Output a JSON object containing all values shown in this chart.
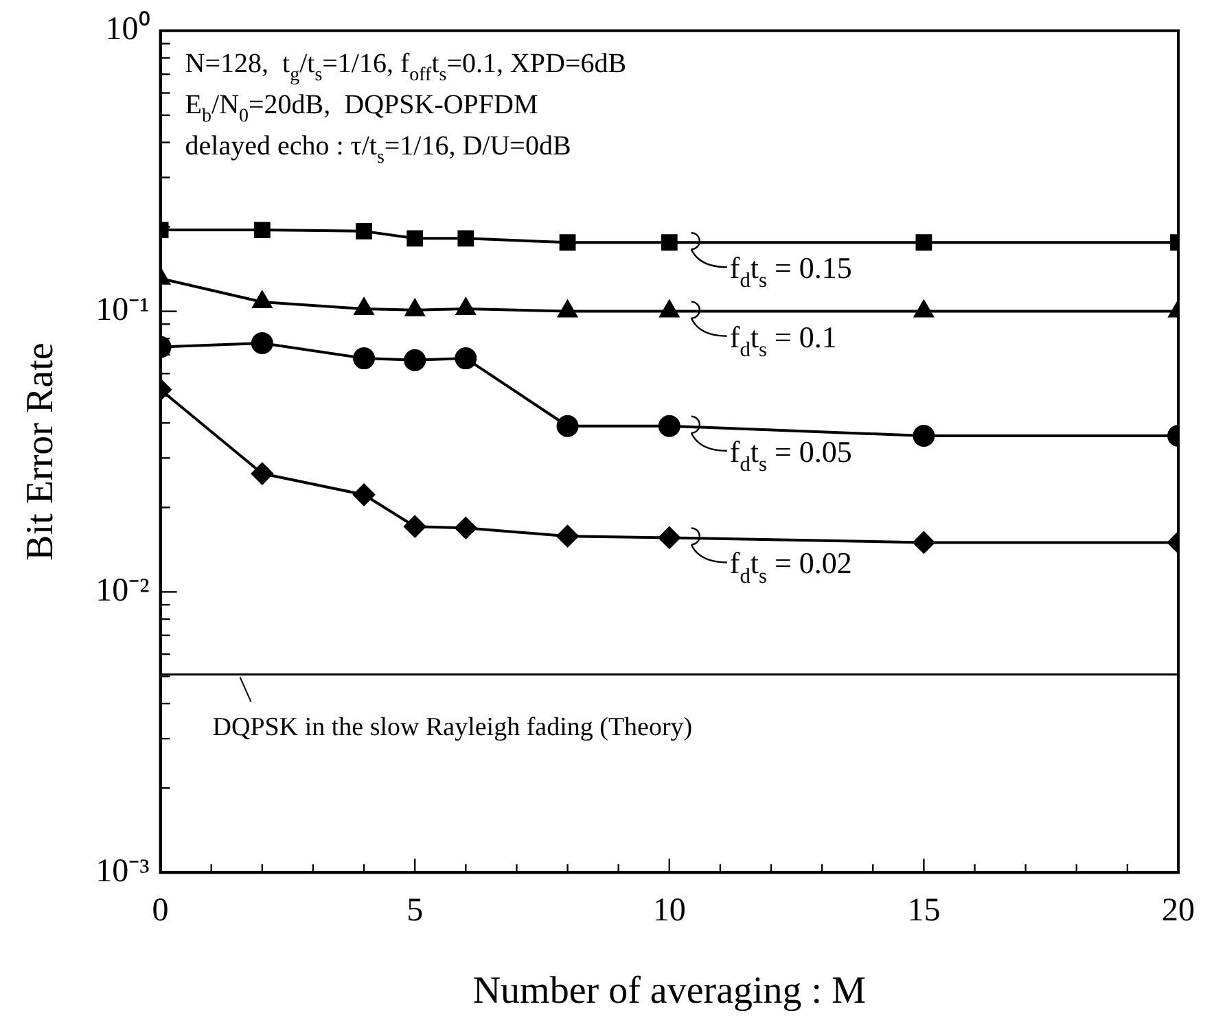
{
  "chart_data": {
    "type": "line",
    "xlabel": "Number of averaging : M",
    "ylabel": "Bit Error Rate",
    "log": "y",
    "grid": false,
    "legend": "right",
    "xlim": [
      0,
      20
    ],
    "xticks": [
      0,
      {
        "value": 1,
        "label": null
      },
      {
        "value": 2,
        "label": null
      },
      {
        "value": 3,
        "label": null
      },
      {
        "value": 4,
        "label": null
      },
      5,
      {
        "value": 6,
        "label": null
      },
      {
        "value": 7,
        "label": null
      },
      {
        "value": 8,
        "label": null
      },
      {
        "value": 9,
        "label": null
      },
      10,
      {
        "value": 11,
        "label": null
      },
      {
        "value": 12,
        "label": null
      },
      {
        "value": 13,
        "label": null
      },
      {
        "value": 14,
        "label": null
      },
      15,
      {
        "value": 16,
        "label": null
      },
      {
        "value": 17,
        "label": null
      },
      {
        "value": 18,
        "label": null
      },
      {
        "value": 19,
        "label": null
      },
      20
    ],
    "ylim": [
      0.001,
      1
    ],
    "yticks": [
      {
        "value": 0.001,
        "label": "10⁻³"
      },
      {
        "value": 0.002,
        "label": null
      },
      {
        "value": 0.003,
        "label": null
      },
      {
        "value": 0.004,
        "label": null
      },
      {
        "value": 0.005,
        "label": null
      },
      {
        "value": 0.006,
        "label": null
      },
      {
        "value": 0.007,
        "label": null
      },
      {
        "value": 0.008,
        "label": null
      },
      {
        "value": 0.009,
        "label": null
      },
      {
        "value": 0.01,
        "label": "10⁻²"
      },
      {
        "value": 0.02,
        "label": null
      },
      {
        "value": 0.03,
        "label": null
      },
      {
        "value": 0.04,
        "label": null
      },
      {
        "value": 0.05,
        "label": null
      },
      {
        "value": 0.06,
        "label": null
      },
      {
        "value": 0.07,
        "label": null
      },
      {
        "value": 0.08,
        "label": null
      },
      {
        "value": 0.09,
        "label": null
      },
      {
        "value": 0.1,
        "label": "10⁻¹"
      },
      {
        "value": 0.2,
        "label": null
      },
      {
        "value": 0.3,
        "label": null
      },
      {
        "value": 0.4,
        "label": null
      },
      {
        "value": 0.5,
        "label": null
      },
      {
        "value": 0.6,
        "label": null
      },
      {
        "value": 0.7,
        "label": null
      },
      {
        "value": 0.8,
        "label": null
      },
      {
        "value": 0.9,
        "label": null
      },
      {
        "value": 1,
        "label": "10⁰"
      }
    ],
    "x": [
      0,
      2,
      4,
      5,
      6,
      8,
      10,
      15,
      20
    ],
    "series": [
      {
        "name": "f$_{d}$t$_{s}$ = 0.15",
        "color": "#000000",
        "marker": "square",
        "values": [
          0.195,
          0.195,
          0.193,
          0.182,
          0.182,
          0.176,
          0.176,
          0.176,
          0.176
        ]
      },
      {
        "name": "f$_{d}$t$_{s}$ = 0.1",
        "color": "#000000",
        "marker": "triangle",
        "values": [
          0.131,
          0.108,
          0.102,
          0.101,
          0.102,
          0.1,
          0.1,
          0.1,
          0.1
        ]
      },
      {
        "name": "f$_{d}$t$_{s}$ = 0.05",
        "color": "#000000",
        "marker": "circle",
        "values": [
          0.0746,
          0.077,
          0.068,
          0.067,
          0.068,
          0.039,
          0.039,
          0.036,
          0.036
        ]
      },
      {
        "name": "f$_{d}$t$_{s}$ = 0.02",
        "color": "#000000",
        "marker": "diamond",
        "values": [
          0.0526,
          0.0264,
          0.0222,
          0.0171,
          0.0169,
          0.0158,
          0.0156,
          0.015,
          0.015
        ]
      }
    ],
    "ref_lines": [
      {
        "axis": "y",
        "value": 0.00508,
        "label": "DQPSK in the slow Rayleigh fading (Theory)",
        "color": "#000000"
      }
    ],
    "annotations": [
      "N=128,  t$_{g}$/t$_{s}$=1/16, f$_{off}$t$_{s}$=0.1, XPD=6dB",
      "E$_{b}$/N$_{0}$=20dB,  DQPSK-OPFDM",
      "delayed echo : τ/t$_{s}$=1/16, D/U=0dB"
    ]
  }
}
